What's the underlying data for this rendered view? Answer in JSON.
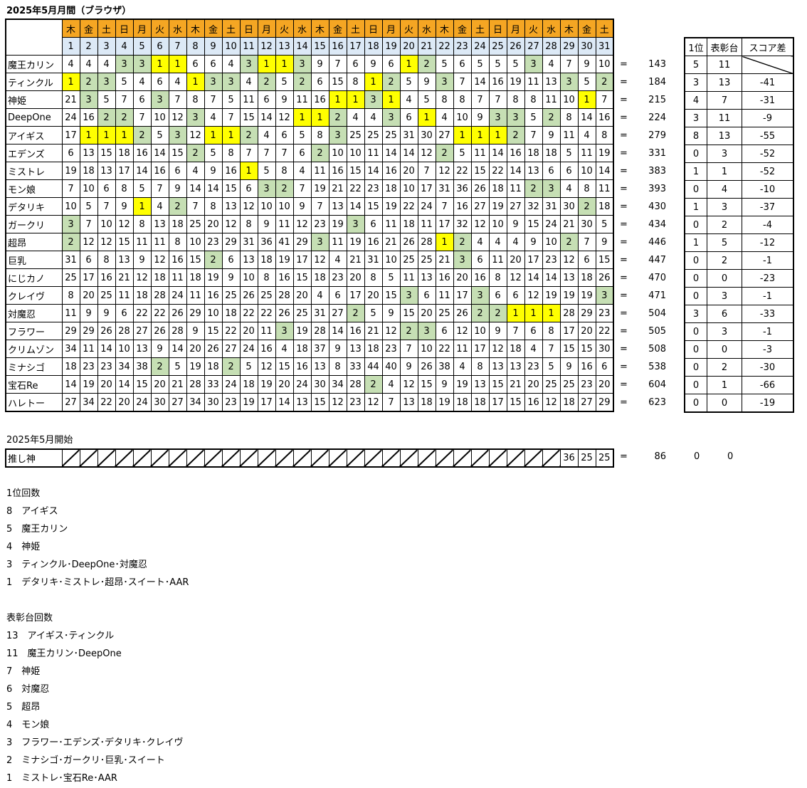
{
  "title": "2025年5月月間（ブラウザ）",
  "days_of_week": [
    "木",
    "金",
    "土",
    "日",
    "月",
    "火",
    "水",
    "木",
    "金",
    "土",
    "日",
    "月",
    "火",
    "水",
    "木",
    "金",
    "土",
    "日",
    "月",
    "火",
    "水",
    "木",
    "金",
    "土",
    "日",
    "月",
    "火",
    "水",
    "木",
    "金",
    "土"
  ],
  "dates": [
    "1",
    "2",
    "3",
    "4",
    "5",
    "6",
    "7",
    "8",
    "9",
    "10",
    "11",
    "12",
    "13",
    "14",
    "15",
    "16",
    "17",
    "18",
    "19",
    "20",
    "21",
    "22",
    "23",
    "24",
    "25",
    "26",
    "27",
    "28",
    "29",
    "30",
    "31"
  ],
  "equals": "=",
  "rows": [
    {
      "name": "魔王カリン",
      "v": [
        4,
        4,
        4,
        3,
        3,
        1,
        1,
        6,
        6,
        4,
        3,
        1,
        1,
        3,
        9,
        7,
        6,
        9,
        6,
        1,
        2,
        5,
        6,
        5,
        5,
        5,
        3,
        4,
        7,
        9,
        10
      ],
      "total": "143",
      "first": "5",
      "podium": "11",
      "diff": ""
    },
    {
      "name": "ティンクル",
      "v": [
        1,
        2,
        3,
        5,
        4,
        6,
        4,
        1,
        3,
        3,
        4,
        2,
        5,
        2,
        6,
        15,
        8,
        1,
        2,
        5,
        9,
        3,
        7,
        14,
        16,
        19,
        11,
        13,
        3,
        5,
        2
      ],
      "total": "184",
      "first": "3",
      "podium": "13",
      "diff": "-41"
    },
    {
      "name": "神姫",
      "v": [
        21,
        3,
        5,
        7,
        6,
        3,
        7,
        8,
        7,
        5,
        11,
        6,
        9,
        11,
        16,
        1,
        1,
        3,
        1,
        4,
        5,
        8,
        8,
        7,
        7,
        8,
        8,
        11,
        10,
        1,
        7
      ],
      "total": "215",
      "first": "4",
      "podium": "7",
      "diff": "-31"
    },
    {
      "name": "DeepOne",
      "v": [
        24,
        16,
        2,
        2,
        7,
        10,
        12,
        3,
        4,
        7,
        15,
        14,
        12,
        1,
        1,
        2,
        4,
        4,
        3,
        6,
        1,
        4,
        10,
        9,
        3,
        3,
        5,
        2,
        8,
        14,
        16
      ],
      "total": "224",
      "first": "3",
      "podium": "11",
      "diff": "-9"
    },
    {
      "name": "アイギス",
      "v": [
        17,
        1,
        1,
        1,
        2,
        5,
        3,
        12,
        1,
        1,
        2,
        4,
        6,
        5,
        8,
        3,
        25,
        25,
        25,
        31,
        30,
        27,
        1,
        1,
        1,
        2,
        7,
        9,
        11,
        4,
        8
      ],
      "total": "279",
      "first": "8",
      "podium": "13",
      "diff": "-55"
    },
    {
      "name": "エデンズ",
      "v": [
        6,
        13,
        15,
        18,
        16,
        14,
        15,
        2,
        5,
        8,
        7,
        7,
        7,
        6,
        2,
        10,
        10,
        11,
        14,
        14,
        12,
        2,
        5,
        11,
        14,
        16,
        18,
        18,
        5,
        11,
        19
      ],
      "total": "331",
      "first": "0",
      "podium": "3",
      "diff": "-52"
    },
    {
      "name": "ミストレ",
      "v": [
        19,
        18,
        13,
        17,
        14,
        16,
        6,
        4,
        9,
        16,
        1,
        5,
        8,
        4,
        11,
        16,
        15,
        14,
        16,
        20,
        7,
        12,
        22,
        15,
        22,
        14,
        13,
        6,
        6,
        10,
        14
      ],
      "total": "383",
      "first": "1",
      "podium": "1",
      "diff": "-52"
    },
    {
      "name": "モン娘",
      "v": [
        7,
        10,
        6,
        8,
        5,
        7,
        9,
        14,
        14,
        15,
        6,
        3,
        2,
        7,
        19,
        21,
        22,
        23,
        18,
        10,
        17,
        31,
        36,
        26,
        18,
        11,
        2,
        3,
        4,
        8,
        11
      ],
      "total": "393",
      "first": "0",
      "podium": "4",
      "diff": "-10"
    },
    {
      "name": "デタリキ",
      "v": [
        10,
        5,
        7,
        9,
        1,
        4,
        2,
        7,
        8,
        13,
        12,
        10,
        10,
        9,
        7,
        13,
        14,
        15,
        19,
        22,
        24,
        7,
        16,
        27,
        19,
        27,
        32,
        31,
        30,
        2,
        18
      ],
      "total": "430",
      "first": "1",
      "podium": "3",
      "diff": "-37"
    },
    {
      "name": "ガークリ",
      "v": [
        3,
        7,
        10,
        12,
        8,
        13,
        18,
        25,
        20,
        12,
        8,
        9,
        11,
        12,
        23,
        19,
        3,
        6,
        11,
        18,
        11,
        17,
        32,
        12,
        10,
        9,
        15,
        24,
        21,
        30,
        5
      ],
      "total": "434",
      "first": "0",
      "podium": "2",
      "diff": "-4"
    },
    {
      "name": "超昂",
      "v": [
        2,
        12,
        12,
        15,
        11,
        11,
        8,
        10,
        23,
        29,
        31,
        36,
        41,
        29,
        3,
        11,
        19,
        16,
        21,
        26,
        28,
        1,
        2,
        4,
        4,
        4,
        9,
        10,
        2,
        7,
        9
      ],
      "total": "446",
      "first": "1",
      "podium": "5",
      "diff": "-12"
    },
    {
      "name": "巨乳",
      "v": [
        31,
        6,
        8,
        13,
        9,
        12,
        16,
        15,
        2,
        6,
        13,
        18,
        19,
        17,
        12,
        4,
        21,
        31,
        10,
        25,
        25,
        21,
        3,
        6,
        11,
        20,
        17,
        23,
        12,
        6,
        15
      ],
      "total": "447",
      "first": "0",
      "podium": "2",
      "diff": "-1"
    },
    {
      "name": "にじカノ",
      "v": [
        25,
        17,
        16,
        21,
        12,
        18,
        11,
        18,
        19,
        9,
        10,
        8,
        16,
        15,
        18,
        23,
        20,
        8,
        5,
        11,
        13,
        16,
        20,
        16,
        8,
        12,
        14,
        14,
        13,
        18,
        26
      ],
      "total": "470",
      "first": "0",
      "podium": "0",
      "diff": "-23"
    },
    {
      "name": "クレイヴ",
      "v": [
        8,
        20,
        25,
        11,
        18,
        28,
        24,
        11,
        16,
        25,
        26,
        25,
        28,
        20,
        4,
        6,
        17,
        20,
        15,
        3,
        6,
        11,
        17,
        3,
        6,
        6,
        12,
        19,
        19,
        19,
        3
      ],
      "total": "471",
      "first": "0",
      "podium": "3",
      "diff": "-1"
    },
    {
      "name": "対魔忍",
      "v": [
        11,
        9,
        9,
        6,
        22,
        22,
        26,
        29,
        10,
        18,
        22,
        22,
        26,
        25,
        31,
        27,
        2,
        5,
        9,
        15,
        20,
        25,
        26,
        2,
        2,
        1,
        1,
        1,
        28,
        29,
        23
      ],
      "total": "504",
      "first": "3",
      "podium": "6",
      "diff": "-33"
    },
    {
      "name": "フラワー",
      "v": [
        29,
        29,
        26,
        28,
        27,
        26,
        28,
        9,
        15,
        22,
        20,
        11,
        3,
        19,
        28,
        14,
        16,
        21,
        12,
        2,
        3,
        6,
        12,
        10,
        9,
        7,
        6,
        8,
        17,
        20,
        22
      ],
      "total": "505",
      "first": "0",
      "podium": "3",
      "diff": "-1"
    },
    {
      "name": "クリムゾン",
      "v": [
        34,
        11,
        14,
        10,
        13,
        9,
        14,
        20,
        26,
        27,
        24,
        16,
        4,
        18,
        37,
        9,
        13,
        18,
        23,
        7,
        10,
        22,
        11,
        17,
        12,
        18,
        4,
        7,
        15,
        15,
        30
      ],
      "total": "508",
      "first": "0",
      "podium": "0",
      "diff": "-3"
    },
    {
      "name": "ミナシゴ",
      "v": [
        18,
        23,
        23,
        34,
        38,
        2,
        5,
        19,
        18,
        2,
        5,
        12,
        15,
        16,
        13,
        8,
        33,
        44,
        40,
        9,
        26,
        38,
        4,
        8,
        13,
        13,
        23,
        5,
        9,
        16,
        6
      ],
      "total": "538",
      "first": "0",
      "podium": "2",
      "diff": "-30"
    },
    {
      "name": "宝石Re",
      "v": [
        14,
        19,
        20,
        14,
        15,
        20,
        21,
        28,
        33,
        24,
        18,
        19,
        20,
        24,
        30,
        34,
        28,
        2,
        4,
        12,
        15,
        9,
        19,
        13,
        15,
        21,
        20,
        25,
        25,
        23,
        20
      ],
      "total": "604",
      "first": "0",
      "podium": "1",
      "diff": "-66"
    },
    {
      "name": "ハレトー",
      "v": [
        27,
        34,
        22,
        20,
        24,
        30,
        27,
        34,
        30,
        23,
        19,
        17,
        14,
        13,
        15,
        12,
        23,
        12,
        7,
        13,
        18,
        19,
        18,
        18,
        17,
        15,
        16,
        12,
        18,
        27,
        29
      ],
      "total": "623",
      "first": "0",
      "podium": "0",
      "diff": "-19"
    }
  ],
  "side_headers": [
    "1位",
    "表彰台",
    "スコア差"
  ],
  "oshi": {
    "start_label": "2025年5月開始",
    "name": "推し神",
    "values": [
      36,
      25,
      25
    ],
    "total": "86",
    "first": "0",
    "podium": "0"
  },
  "first_count": {
    "heading": "1位回数",
    "lines": [
      "8　アイギス",
      "5　魔王カリン",
      "4　神姫",
      "3　ティンクル･DeepOne･対魔忍",
      "1　デタリキ･ミストレ･超昂･スイート･AAR"
    ]
  },
  "podium_count": {
    "heading": "表彰台回数",
    "lines": [
      "13　アイギス･ティンクル",
      "11　魔王カリン･DeepOne",
      "7　神姫",
      "6　対魔忍",
      "5　超昂",
      "4　モン娘",
      "3　フラワー･エデンズ･デタリキ･クレイヴ",
      "2　ミナシゴ･ガークリ･巨乳･スイート",
      "1　ミストレ･宝石Re･AAR"
    ]
  },
  "colors": {
    "day_header": "#f5a623",
    "date_header": "#dce9f6",
    "first_place": "#ffff00",
    "podium": "#c6dfb4"
  }
}
